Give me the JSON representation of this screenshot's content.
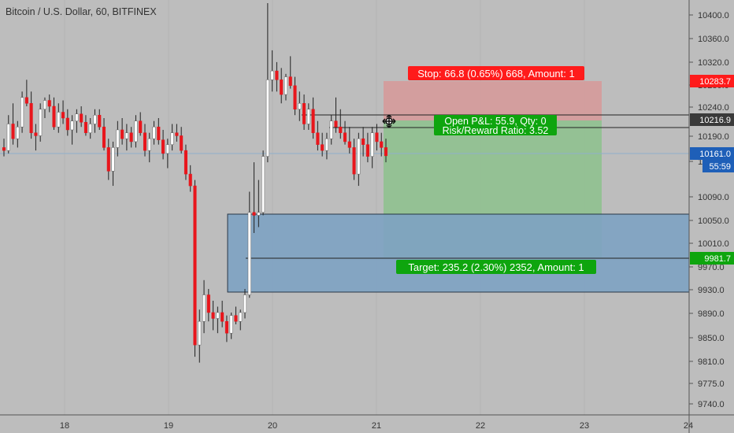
{
  "header": {
    "title": "Bitcoin / U.S. Dollar, 60, BITFINEX"
  },
  "colors": {
    "background": "#bdbdbd",
    "up": "#ffffff",
    "down": "#e8161c",
    "wick": "#222222",
    "stop_zone": "#d59a9a",
    "target_zone": "#8fc18f",
    "box_zone": "#7ea3c3",
    "stop_label": "#ff1b1b",
    "target_label": "#0ea50e",
    "blue_tag": "#1e5fb8",
    "dark_tag": "#3a3a3a"
  },
  "position_tool": {
    "stop_label": "Stop: 66.8 (0.65%) 668, Amount: 1",
    "pnl_label": "Open P&L: 55.9, Qty: 0",
    "rr_label": "Risk/Reward Ratio: 3.52",
    "target_label": "Target: 235.2 (2.30%) 2352, Amount: 1",
    "entry": 10216.9,
    "stop": 10283.7,
    "target": 9981.7
  },
  "axis_tags": {
    "stop": "10283.7",
    "entry": "10216.9",
    "current": "10161.0",
    "countdown": "55:59",
    "target": "9981.7"
  },
  "chart_data": {
    "type": "candlestick",
    "y_ticks": [
      "10400.0",
      "10360.0",
      "10320.0",
      "10280.0",
      "10240.0",
      "10190.0",
      "10150.0",
      "10090.0",
      "10050.0",
      "10010.0",
      "9970.0",
      "9930.0",
      "9890.0",
      "9850.0",
      "9810.0",
      "9775.0",
      "9740.0"
    ],
    "x_ticks": [
      "18",
      "19",
      "20",
      "21",
      "22",
      "23",
      "24"
    ],
    "ohlc": [
      [
        10175,
        10190,
        10160,
        10170
      ],
      [
        10170,
        10230,
        10165,
        10215
      ],
      [
        10215,
        10250,
        10180,
        10190
      ],
      [
        10190,
        10220,
        10175,
        10210
      ],
      [
        10210,
        10270,
        10200,
        10260
      ],
      [
        10260,
        10290,
        10245,
        10250
      ],
      [
        10250,
        10270,
        10190,
        10200
      ],
      [
        10200,
        10215,
        10170,
        10195
      ],
      [
        10195,
        10250,
        10185,
        10240
      ],
      [
        10240,
        10260,
        10225,
        10255
      ],
      [
        10255,
        10265,
        10235,
        10245
      ],
      [
        10245,
        10260,
        10205,
        10210
      ],
      [
        10210,
        10250,
        10200,
        10235
      ],
      [
        10235,
        10255,
        10215,
        10225
      ],
      [
        10225,
        10240,
        10195,
        10205
      ],
      [
        10205,
        10230,
        10180,
        10220
      ],
      [
        10220,
        10240,
        10200,
        10232
      ],
      [
        10232,
        10245,
        10210,
        10218
      ],
      [
        10218,
        10230,
        10195,
        10200
      ],
      [
        10200,
        10225,
        10190,
        10215
      ],
      [
        10215,
        10240,
        10200,
        10230
      ],
      [
        10230,
        10240,
        10205,
        10210
      ],
      [
        10210,
        10225,
        10170,
        10175
      ],
      [
        10175,
        10190,
        10120,
        10135
      ],
      [
        10135,
        10185,
        10110,
        10175
      ],
      [
        10175,
        10220,
        10160,
        10205
      ],
      [
        10205,
        10225,
        10180,
        10190
      ],
      [
        10190,
        10215,
        10170,
        10200
      ],
      [
        10200,
        10210,
        10175,
        10185
      ],
      [
        10185,
        10230,
        10175,
        10220
      ],
      [
        10220,
        10235,
        10195,
        10200
      ],
      [
        10200,
        10215,
        10160,
        10170
      ],
      [
        10170,
        10200,
        10150,
        10190
      ],
      [
        10190,
        10220,
        10180,
        10210
      ],
      [
        10210,
        10225,
        10180,
        10188
      ],
      [
        10188,
        10205,
        10155,
        10165
      ],
      [
        10165,
        10190,
        10140,
        10180
      ],
      [
        10180,
        10215,
        10170,
        10200
      ],
      [
        10200,
        10215,
        10185,
        10195
      ],
      [
        10195,
        10210,
        10165,
        10170
      ],
      [
        10170,
        10180,
        10120,
        10130
      ],
      [
        10130,
        10145,
        10100,
        10110
      ],
      [
        10110,
        10120,
        9820,
        9840
      ],
      [
        9840,
        9900,
        9810,
        9880
      ],
      [
        9880,
        9950,
        9860,
        9925
      ],
      [
        9925,
        9935,
        9880,
        9895
      ],
      [
        9895,
        9915,
        9865,
        9885
      ],
      [
        9885,
        9905,
        9860,
        9895
      ],
      [
        9895,
        9915,
        9870,
        9880
      ],
      [
        9880,
        9890,
        9845,
        9860
      ],
      [
        9860,
        9895,
        9850,
        9890
      ],
      [
        9890,
        9905,
        9875,
        9880
      ],
      [
        9880,
        9900,
        9865,
        9895
      ],
      [
        9895,
        9935,
        9885,
        9925
      ],
      [
        9925,
        10100,
        9920,
        10065
      ],
      [
        10065,
        10150,
        10030,
        10060
      ],
      [
        10060,
        10120,
        10040,
        10065
      ],
      [
        10065,
        10170,
        10060,
        10160
      ],
      [
        10160,
        10420,
        10150,
        10290
      ],
      [
        10290,
        10340,
        10270,
        10305
      ],
      [
        10305,
        10320,
        10270,
        10290
      ],
      [
        10290,
        10310,
        10250,
        10265
      ],
      [
        10265,
        10300,
        10255,
        10295
      ],
      [
        10295,
        10330,
        10275,
        10280
      ],
      [
        10280,
        10295,
        10230,
        10240
      ],
      [
        10240,
        10270,
        10220,
        10250
      ],
      [
        10250,
        10265,
        10205,
        10215
      ],
      [
        10215,
        10250,
        10205,
        10240
      ],
      [
        10240,
        10260,
        10190,
        10200
      ],
      [
        10200,
        10220,
        10170,
        10180
      ],
      [
        10180,
        10200,
        10160,
        10170
      ],
      [
        10170,
        10200,
        10155,
        10190
      ],
      [
        10190,
        10230,
        10180,
        10220
      ],
      [
        10220,
        10260,
        10200,
        10210
      ],
      [
        10210,
        10240,
        10190,
        10200
      ],
      [
        10200,
        10220,
        10180,
        10185
      ],
      [
        10185,
        10210,
        10165,
        10175
      ],
      [
        10175,
        10190,
        10120,
        10130
      ],
      [
        10130,
        10200,
        10110,
        10190
      ],
      [
        10190,
        10210,
        10160,
        10180
      ],
      [
        10180,
        10200,
        10150,
        10160
      ],
      [
        10160,
        10210,
        10140,
        10200
      ],
      [
        10200,
        10215,
        10170,
        10185
      ],
      [
        10185,
        10200,
        10160,
        10175
      ],
      [
        10175,
        10190,
        10150,
        10161
      ]
    ]
  }
}
